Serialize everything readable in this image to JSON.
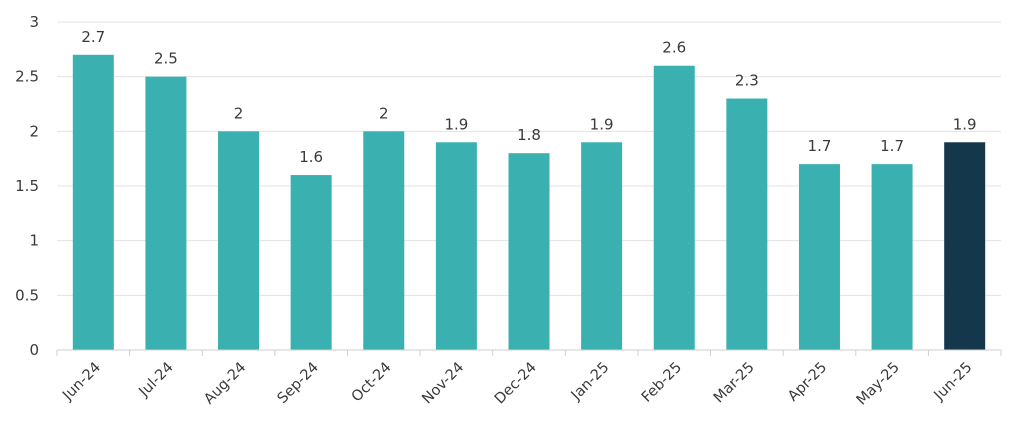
{
  "chart_data": {
    "type": "bar",
    "title": "",
    "xlabel": "",
    "ylabel": "",
    "categories": [
      "Jun-24",
      "Jul-24",
      "Aug-24",
      "Sep-24",
      "Oct-24",
      "Nov-24",
      "Dec-24",
      "Jan-25",
      "Feb-25",
      "Mar-25",
      "Apr-25",
      "May-25",
      "Jun-25"
    ],
    "values": [
      2.7,
      2.5,
      2,
      1.6,
      2,
      1.9,
      1.8,
      1.9,
      2.6,
      2.3,
      1.7,
      1.7,
      1.9
    ],
    "data_labels": [
      "2.7",
      "2.5",
      "2",
      "1.6",
      "2",
      "1.9",
      "1.8",
      "1.9",
      "2.6",
      "2.3",
      "1.7",
      "1.7",
      "1.9"
    ],
    "ylim": [
      0,
      3
    ],
    "yticks": [
      0,
      0.5,
      1,
      1.5,
      2,
      2.5,
      3
    ],
    "ytick_labels": [
      "0",
      "0.5",
      "1",
      "1.5",
      "2",
      "2.5",
      "3"
    ],
    "grid": true,
    "legend": "none",
    "colors": {
      "bar": "#3ab0b0",
      "highlight_bar": "#14374c",
      "highlight_index": 12
    }
  }
}
